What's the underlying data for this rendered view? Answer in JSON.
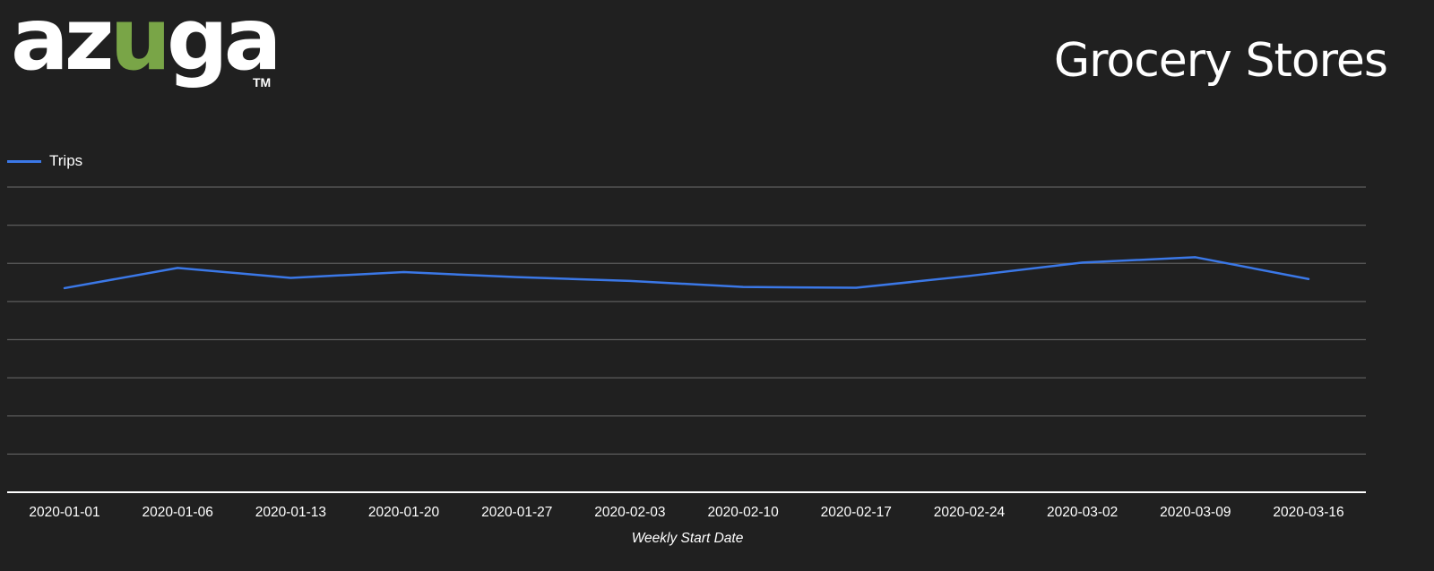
{
  "logo": {
    "prefix": "az",
    "u_letter": "u",
    "suffix": "ga",
    "tm": "TM",
    "accent_color": "#79a547"
  },
  "page_title": "Grocery Stores",
  "chart_data": {
    "type": "line",
    "title": "",
    "xlabel": "Weekly Start Date",
    "ylabel": "",
    "grid": true,
    "y_axis_labels_shown": false,
    "ylim": [
      0,
      8
    ],
    "legend_position": "top-left",
    "categories": [
      "2020-01-01",
      "2020-01-06",
      "2020-01-13",
      "2020-01-20",
      "2020-01-27",
      "2020-02-03",
      "2020-02-10",
      "2020-02-17",
      "2020-02-24",
      "2020-03-02",
      "2020-03-09",
      "2020-03-16"
    ],
    "series": [
      {
        "name": "Trips",
        "color": "#3b78e7",
        "values": [
          5.35,
          5.88,
          5.62,
          5.77,
          5.64,
          5.54,
          5.38,
          5.36,
          5.67,
          6.02,
          6.16,
          5.59
        ]
      }
    ]
  }
}
